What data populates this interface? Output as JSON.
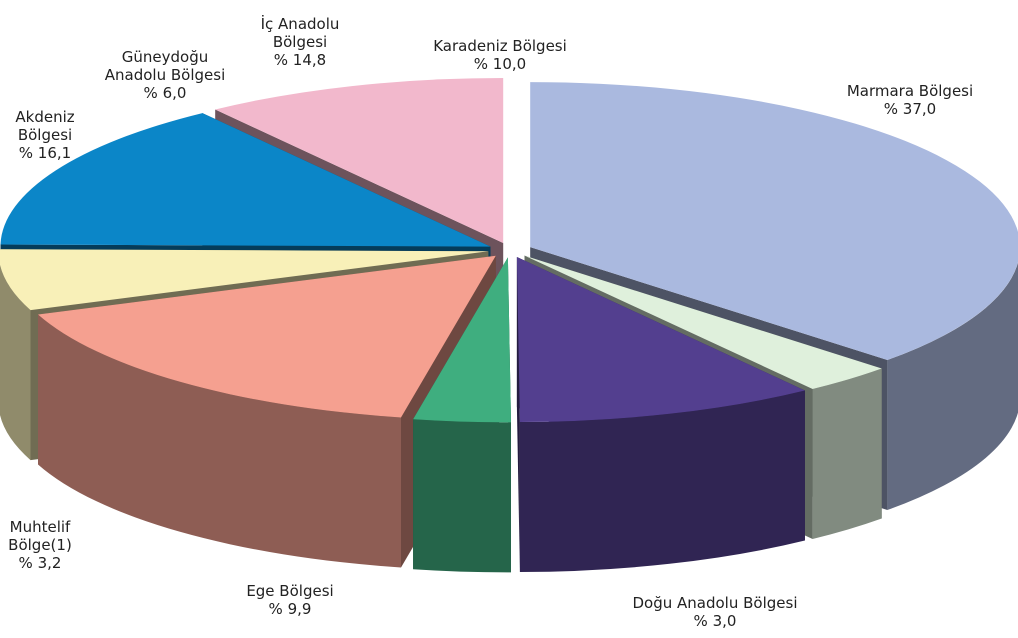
{
  "chart_data": {
    "type": "pie3d",
    "categories": [
      "Marmara Bölgesi",
      "Doğu Anadolu Bölgesi",
      "Ege Bölgesi",
      "Muhtelif Bölge(1)",
      "Akdeniz Bölgesi",
      "Güneydoğu Anadolu Bölgesi",
      "İç Anadolu Bölgesi",
      "Karadeniz Bölgesi"
    ],
    "values": [
      37.0,
      3.0,
      9.9,
      3.2,
      16.1,
      6.0,
      14.8,
      10.0
    ],
    "value_labels": [
      "% 37,0",
      "% 3,0",
      "% 9,9",
      "% 3,2",
      "% 16,1",
      "% 6,0",
      "% 14,8",
      "% 10,0"
    ],
    "colors": [
      "#aab9df",
      "#dff0dc",
      "#533f8f",
      "#3fae7f",
      "#f5a090",
      "#f8f0b8",
      "#0b86c8",
      "#f2b8cc"
    ]
  }
}
